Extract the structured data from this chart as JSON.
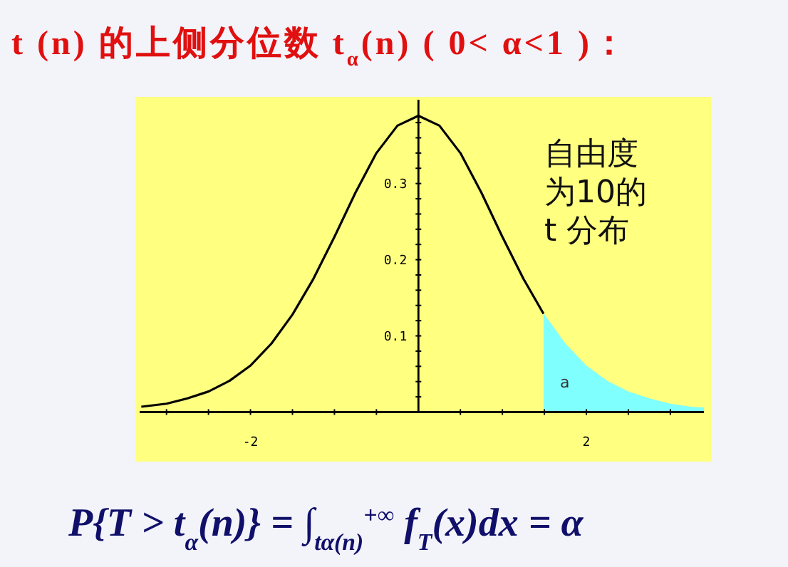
{
  "chart_data": {
    "type": "line",
    "title": "t (n) 的上侧分位数 t$_{α}$(n)  ( 0< α<1 )：",
    "xlim": [
      -3.32,
      3.4
    ],
    "ylim": [
      -0.065,
      0.41
    ],
    "xticks": [
      {
        "value": -3,
        "label": null
      },
      {
        "value": -2.5,
        "label": null
      },
      -2,
      {
        "value": -1.5,
        "label": null
      },
      {
        "value": -1,
        "label": null
      },
      {
        "value": -0.5,
        "label": null
      },
      {
        "value": 0.5,
        "label": null
      },
      {
        "value": 1,
        "label": null
      },
      {
        "value": 1.5,
        "label": null
      },
      2,
      {
        "value": 2.5,
        "label": null
      },
      {
        "value": 3,
        "label": null
      }
    ],
    "yticks": [
      {
        "value": 0.02,
        "label": null
      },
      {
        "value": 0.04,
        "label": null
      },
      {
        "value": 0.06,
        "label": null
      },
      {
        "value": 0.08,
        "label": null
      },
      0.1,
      {
        "value": 0.12,
        "label": null
      },
      {
        "value": 0.14,
        "label": null
      },
      {
        "value": 0.16,
        "label": null
      },
      {
        "value": 0.18,
        "label": null
      },
      0.2,
      {
        "value": 0.22,
        "label": null
      },
      {
        "value": 0.24,
        "label": null
      },
      {
        "value": 0.26,
        "label": null
      },
      {
        "value": 0.28,
        "label": null
      },
      0.3,
      {
        "value": 0.32,
        "label": null
      },
      {
        "value": 0.34,
        "label": null
      },
      {
        "value": 0.36,
        "label": null
      },
      {
        "value": 0.38,
        "label": null
      }
    ],
    "series": [
      {
        "type": "area",
        "color": "#80ffff",
        "x": [
          1.49,
          1.5,
          1.75,
          2,
          2.25,
          2.5,
          2.75,
          3,
          3.25,
          3.4
        ],
        "values": [
          0.129,
          0.128,
          0.09,
          0.061,
          0.041,
          0.027,
          0.018,
          0.011,
          0.007,
          0.006
        ]
      },
      {
        "color": "#000000",
        "x": [
          -3.3,
          -3,
          -2.75,
          -2.5,
          -2.25,
          -2,
          -1.75,
          -1.5,
          -1.25,
          -1,
          -0.75,
          -0.5,
          -0.25,
          0,
          0.25,
          0.5,
          0.75,
          1,
          1.25,
          1.49
        ],
        "values": [
          0.007,
          0.011,
          0.018,
          0.027,
          0.041,
          0.061,
          0.09,
          0.128,
          0.175,
          0.23,
          0.288,
          0.34,
          0.376,
          0.389,
          0.376,
          0.34,
          0.288,
          0.23,
          0.175,
          0.129
        ]
      }
    ],
    "annotations": [
      "自由度",
      "为10的",
      "t 分布",
      "a",
      "P{T > t$_{α}$(n)} = ∫$_{tα(n)}$$^{+∞}$ f$_{T}$(x)dx = α"
    ]
  }
}
